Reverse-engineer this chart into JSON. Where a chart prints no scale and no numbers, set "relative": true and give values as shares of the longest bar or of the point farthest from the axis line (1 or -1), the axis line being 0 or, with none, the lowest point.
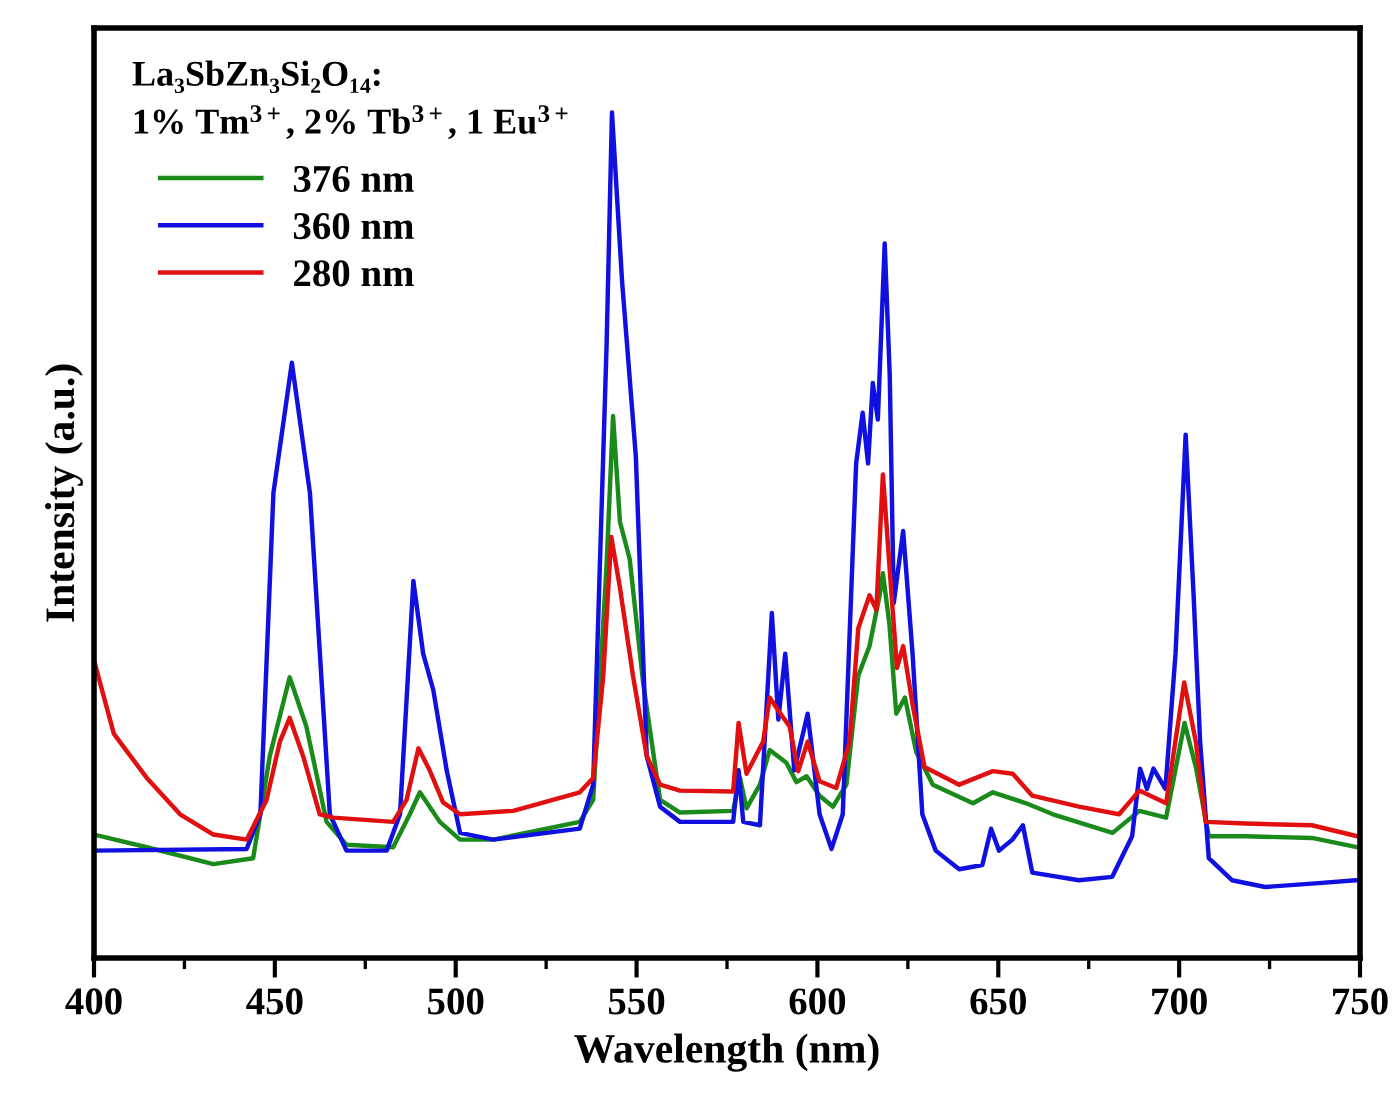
{
  "chart_data": {
    "type": "line",
    "xlabel": "Wavelength (nm)",
    "ylabel": "Intensity (a.u.)",
    "relative": true,
    "tick_labels": "x",
    "legend": "top left",
    "grid": false,
    "marker": "none",
    "line_style": "solid",
    "xlim": [
      400,
      750
    ],
    "xticks": [
      400,
      {
        "value": 425,
        "label": null
      },
      450,
      {
        "value": 475,
        "label": null
      },
      500,
      {
        "value": 525,
        "label": null
      },
      550,
      {
        "value": 575,
        "label": null
      },
      600,
      {
        "value": 625,
        "label": null
      },
      650,
      {
        "value": 675,
        "label": null
      },
      700,
      {
        "value": 725,
        "label": null
      },
      750
    ],
    "annotations": [
      "La₃SbZn₃Si₂O₁₄:",
      "1% Tm$^{3+}$, 2% Tb$^{3+}$, 1 Eu$^{3+}$"
    ],
    "series": [
      {
        "name": "376 nm",
        "color": "#1a8a1a",
        "x": [
          400,
          414.6,
          433,
          444,
          448.6,
          454.1,
          458.7,
          464.3,
          469.8,
          482.7,
          487.3,
          490.1,
          495.6,
          501.2,
          510.4,
          534.3,
          538,
          541.7,
          543.5,
          545.4,
          548.1,
          551.8,
          556.5,
          562,
          576.7,
          578.6,
          580.4,
          584.1,
          586.8,
          591.4,
          594.2,
          597,
          600.6,
          604.3,
          608,
          611.3,
          614.4,
          617.2,
          618.1,
          619.9,
          621.8,
          624.2,
          627.3,
          631.9,
          643,
          648.5,
          657.7,
          665.1,
          681.6,
          689,
          696.4,
          701.5,
          704.6,
          708.2,
          718.3,
          736.7,
          749.2
        ],
        "values": [
          0.146,
          0.131,
          0.111,
          0.118,
          0.239,
          0.332,
          0.274,
          0.161,
          0.134,
          0.131,
          0.17,
          0.196,
          0.161,
          0.14,
          0.14,
          0.161,
          0.187,
          0.464,
          0.641,
          0.516,
          0.472,
          0.326,
          0.187,
          0.172,
          0.174,
          0.213,
          0.177,
          0.205,
          0.246,
          0.231,
          0.208,
          0.215,
          0.192,
          0.179,
          0.205,
          0.334,
          0.369,
          0.429,
          0.455,
          0.395,
          0.289,
          0.308,
          0.244,
          0.205,
          0.183,
          0.196,
          0.183,
          0.17,
          0.148,
          0.174,
          0.166,
          0.278,
          0.226,
          0.144,
          0.144,
          0.142,
          0.131
        ]
      },
      {
        "name": "360 nm",
        "color": "#1010e0",
        "x": [
          400,
          442.2,
          446,
          449.6,
          454.7,
          459.7,
          465.2,
          469.8,
          480.9,
          484.6,
          488.3,
          491,
          493.8,
          497.5,
          501.2,
          510.4,
          534.3,
          538,
          541.7,
          543.2,
          546,
          549.8,
          552.8,
          556.5,
          562,
          576.7,
          578.2,
          579.5,
          584.1,
          587.4,
          589.2,
          591.1,
          593.6,
          597.3,
          600.6,
          603.9,
          607,
          610.7,
          612.5,
          614,
          615.3,
          616.7,
          618.6,
          620,
          621.1,
          623.7,
          626.3,
          629,
          632.7,
          639.2,
          645.6,
          648,
          650.2,
          653.9,
          656.8,
          659.4,
          672.3,
          681.5,
          687,
          689.2,
          691.1,
          692.9,
          696.2,
          699,
          701.8,
          704,
          705.8,
          708.2,
          714.6,
          723.8,
          736.7,
          749.2
        ],
        "values": [
          0.127,
          0.129,
          0.17,
          0.55,
          0.704,
          0.55,
          0.17,
          0.127,
          0.127,
          0.17,
          0.446,
          0.36,
          0.317,
          0.222,
          0.148,
          0.14,
          0.153,
          0.205,
          0.723,
          1.0,
          0.8,
          0.593,
          0.239,
          0.179,
          0.161,
          0.161,
          0.222,
          0.161,
          0.157,
          0.408,
          0.282,
          0.36,
          0.222,
          0.289,
          0.17,
          0.129,
          0.17,
          0.585,
          0.645,
          0.585,
          0.68,
          0.637,
          0.845,
          0.688,
          0.42,
          0.505,
          0.36,
          0.17,
          0.127,
          0.105,
          0.11,
          0.153,
          0.127,
          0.14,
          0.157,
          0.101,
          0.092,
          0.096,
          0.144,
          0.224,
          0.2,
          0.224,
          0.2,
          0.36,
          0.619,
          0.429,
          0.256,
          0.118,
          0.092,
          0.084,
          0.088,
          0.092
        ]
      },
      {
        "name": "280 nm",
        "color": "#e01010",
        "x": [
          400,
          405.5,
          414.6,
          423.8,
          433,
          442.2,
          447.7,
          451.4,
          454.1,
          457.8,
          462.4,
          466.1,
          482.7,
          486.4,
          489.7,
          492.8,
          496.5,
          501.2,
          515.9,
          534.3,
          538,
          540.8,
          543,
          545.4,
          549,
          552.8,
          556.5,
          562,
          576.7,
          578.2,
          580.4,
          585,
          586.8,
          589.6,
          592.3,
          594.7,
          597.3,
          600.6,
          605.2,
          608.9,
          611.3,
          614.4,
          616.3,
          618.1,
          620.5,
          622,
          623.7,
          626.3,
          629.6,
          639.2,
          648.5,
          654,
          659.4,
          672.3,
          683.4,
          689,
          696.4,
          701.4,
          704.6,
          707.3,
          718.3,
          736.7,
          749.2
        ],
        "values": [
          0.352,
          0.265,
          0.213,
          0.17,
          0.146,
          0.14,
          0.187,
          0.256,
          0.284,
          0.239,
          0.17,
          0.166,
          0.161,
          0.187,
          0.248,
          0.222,
          0.184,
          0.17,
          0.174,
          0.196,
          0.213,
          0.334,
          0.498,
          0.438,
          0.334,
          0.239,
          0.205,
          0.198,
          0.197,
          0.278,
          0.218,
          0.256,
          0.308,
          0.29,
          0.274,
          0.221,
          0.256,
          0.209,
          0.201,
          0.256,
          0.39,
          0.429,
          0.412,
          0.572,
          0.429,
          0.343,
          0.369,
          0.3,
          0.226,
          0.205,
          0.221,
          0.218,
          0.192,
          0.179,
          0.17,
          0.198,
          0.183,
          0.326,
          0.256,
          0.161,
          0.159,
          0.157,
          0.144
        ]
      }
    ]
  }
}
